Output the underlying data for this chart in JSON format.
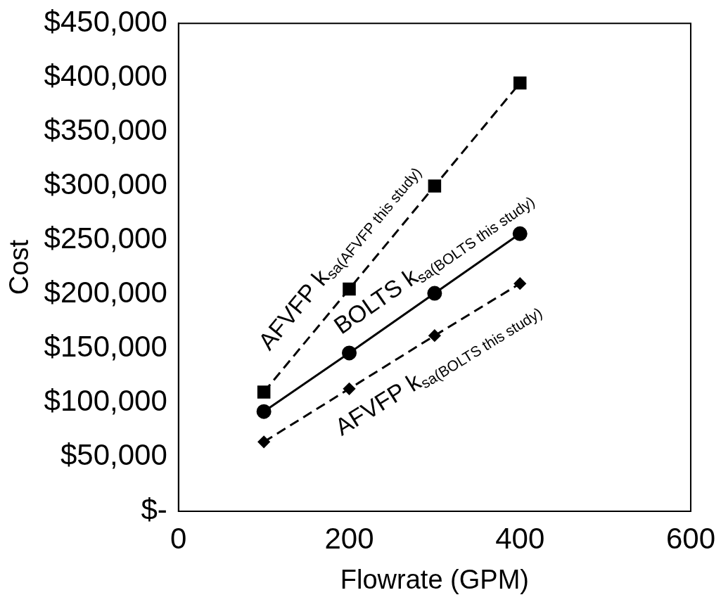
{
  "chart_data": {
    "type": "line",
    "xlabel": "Flowrate (GPM)",
    "ylabel": "Cost",
    "series": [
      {
        "color": "#000000",
        "marker": "square",
        "line_style": "dashed",
        "x": [
          100,
          200,
          300,
          400
        ],
        "values": [
          110000,
          205000,
          300000,
          395000
        ]
      },
      {
        "color": "#000000",
        "marker": "circle",
        "line_style": "solid",
        "x": [
          100,
          200,
          300,
          400
        ],
        "values": [
          92000,
          146000,
          201000,
          256000
        ]
      },
      {
        "color": "#000000",
        "marker": "diamond",
        "line_style": "dashed",
        "x": [
          100,
          200,
          300,
          400
        ],
        "values": [
          64000,
          113000,
          162000,
          210000
        ]
      }
    ],
    "annotations": [
      "AFVFP k$_{sa(AFVFP this study)}$",
      "BOLTS k$_{sa(BOLTS this study)}$",
      "AFVFP k$_{sa(BOLTS this study)}$"
    ],
    "xlim": [
      0,
      600
    ],
    "xticks": [
      0,
      200,
      400,
      600
    ],
    "ylim": [
      0,
      450000
    ],
    "yticks": [
      {
        "value": 0,
        "label": "$-"
      },
      {
        "value": 50000,
        "label": "$50,000"
      },
      {
        "value": 100000,
        "label": "$100,000"
      },
      {
        "value": 150000,
        "label": "$150,000"
      },
      {
        "value": 200000,
        "label": "$200,000"
      },
      {
        "value": 250000,
        "label": "$250,000"
      },
      {
        "value": 300000,
        "label": "$300,000"
      },
      {
        "value": 350000,
        "label": "$350,000"
      },
      {
        "value": 400000,
        "label": "$400,000"
      },
      {
        "value": 450000,
        "label": "$450,000"
      }
    ],
    "grid": false,
    "legend": false
  }
}
